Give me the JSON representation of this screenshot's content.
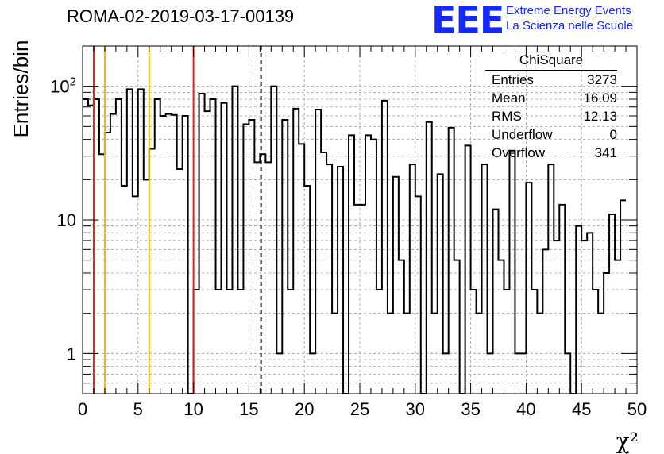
{
  "header": {
    "title": "ROMA-02-2019-03-17-00139",
    "logo_text": "EEE",
    "logo_line1": "Extreme Energy Events",
    "logo_line2": "La Scienza nelle Scuole"
  },
  "stats_box": {
    "title": "ChiSquare",
    "rows": [
      {
        "label": "Entries",
        "value": "3273"
      },
      {
        "label": "Mean",
        "value": "16.09"
      },
      {
        "label": "RMS",
        "value": "12.13"
      },
      {
        "label": "Underflow",
        "value": "0"
      },
      {
        "label": "Overflow",
        "value": "341"
      }
    ]
  },
  "colors": {
    "red_lines": "#e3201b",
    "orange_lines": "#f2b600",
    "histogram": "#000000",
    "grid": "#9a9a9a",
    "logo": "#1428ff"
  },
  "chart_data": {
    "type": "histogram",
    "title": "ROMA-02-2019-03-17-00139",
    "xlabel": "χ²",
    "ylabel": "Entries/bin",
    "xlim": [
      0,
      50
    ],
    "ylim": [
      0.5,
      200
    ],
    "yscale": "log",
    "grid": true,
    "bin_width": 0.5,
    "x_ticks": [
      "0",
      "5",
      "10",
      "15",
      "20",
      "25",
      "30",
      "35",
      "40",
      "45",
      "50"
    ],
    "y_ticks": [
      {
        "value": 1,
        "label": "1"
      },
      {
        "value": 10,
        "label": "10"
      },
      {
        "value": 100,
        "label": "10²"
      }
    ],
    "counts": [
      80,
      72,
      80,
      31,
      45,
      62,
      80,
      18,
      95,
      15,
      95,
      20,
      34,
      80,
      60,
      62,
      61,
      24,
      60,
      0,
      3,
      88,
      65,
      80,
      3,
      75,
      3,
      100,
      3,
      52,
      56,
      27,
      31,
      27,
      100,
      1,
      56,
      3,
      68,
      37,
      18,
      1,
      67,
      32,
      26,
      2,
      25,
      0,
      43,
      13,
      13,
      43,
      40,
      3,
      78,
      2,
      21,
      5,
      2,
      26,
      15,
      0,
      54,
      2,
      22,
      1,
      49,
      5,
      0,
      36,
      3,
      2,
      26,
      1,
      12,
      5,
      3,
      33,
      1,
      1,
      19,
      3,
      2,
      6,
      26,
      7,
      13,
      1,
      0,
      9,
      7,
      8,
      3,
      2,
      4,
      11,
      5,
      14
    ],
    "vertical_lines": [
      {
        "x": 1,
        "color": "red",
        "style": "solid"
      },
      {
        "x": 2,
        "color": "orange",
        "style": "solid"
      },
      {
        "x": 6,
        "color": "orange",
        "style": "solid"
      },
      {
        "x": 10,
        "color": "red",
        "style": "solid"
      },
      {
        "x": 16.09,
        "color": "black",
        "style": "dashed"
      }
    ]
  }
}
